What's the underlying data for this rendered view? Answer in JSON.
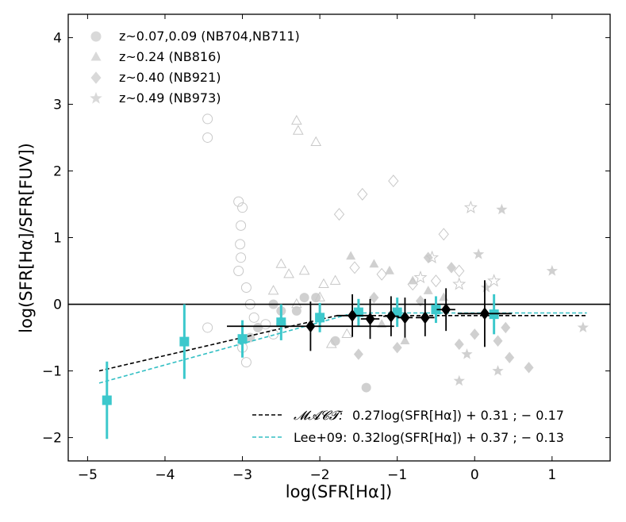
{
  "chart_data": {
    "type": "scatter",
    "title": "",
    "xlabel": "log(SFR[Hα])",
    "ylabel": "log(SFR[Hα]/SFR[FUV])",
    "xlim": [
      -5.25,
      1.75
    ],
    "ylim": [
      -2.35,
      4.35
    ],
    "xticks": [
      -5,
      -4,
      -3,
      -2,
      -1,
      0,
      1
    ],
    "yticks": [
      -2,
      -1,
      0,
      1,
      2,
      3,
      4
    ],
    "xtick_labels": [
      "−5",
      "−4",
      "−3",
      "−2",
      "−1",
      "0",
      "1"
    ],
    "ytick_labels": [
      "−2",
      "−1",
      "0",
      "1",
      "2",
      "3",
      "4"
    ],
    "grid": false,
    "reference_line": {
      "y": 0
    },
    "legend_top": [
      {
        "marker": "circle",
        "label": "z~0.07,0.09 (NB704,NB711)"
      },
      {
        "marker": "triangle",
        "label": "z~0.24 (NB816)"
      },
      {
        "marker": "diamond",
        "label": "z~0.40 (NB921)"
      },
      {
        "marker": "star",
        "label": "z~0.49 (NB973)"
      }
    ],
    "legend_bottom": [
      {
        "style": "dashed",
        "color": "#000000",
        "label_name": "𝓜𝓐𝓒𝓣:",
        "label_expr": "0.27log(SFR[Hα]) + 0.31 ;  − 0.17"
      },
      {
        "style": "dashed",
        "color": "#33bfc4",
        "label_name": "Lee+09:",
        "label_expr": "0.32log(SFR[Hα]) + 0.37 ;  − 0.13"
      }
    ],
    "fits": [
      {
        "name": "MACT",
        "color": "#000000",
        "slope": 0.27,
        "intercept": 0.31,
        "plateau": -0.17,
        "x_range": [
          -4.85,
          1.45
        ]
      },
      {
        "name": "Lee+09",
        "color": "#33bfc4",
        "slope": 0.32,
        "intercept": 0.37,
        "plateau": -0.13,
        "x_range": [
          -4.85,
          1.45
        ]
      }
    ],
    "series": [
      {
        "name": "Lee+09 binned",
        "marker": "square",
        "color": "#3cc8cc",
        "points": [
          {
            "x": -4.75,
            "y": -1.44,
            "yerr_low": 0.58,
            "yerr_high": 0.58
          },
          {
            "x": -3.75,
            "y": -0.56,
            "yerr_low": 0.56,
            "yerr_high": 0.56
          },
          {
            "x": -3.0,
            "y": -0.52,
            "yerr_low": 0.28,
            "yerr_high": 0.28
          },
          {
            "x": -2.5,
            "y": -0.27,
            "yerr_low": 0.27,
            "yerr_high": 0.27
          },
          {
            "x": -2.0,
            "y": -0.2,
            "yerr_low": 0.22,
            "yerr_high": 0.22
          },
          {
            "x": -1.5,
            "y": -0.12,
            "yerr_low": 0.2,
            "yerr_high": 0.2
          },
          {
            "x": -1.0,
            "y": -0.12,
            "yerr_low": 0.22,
            "yerr_high": 0.22
          },
          {
            "x": -0.5,
            "y": -0.08,
            "yerr_low": 0.2,
            "yerr_high": 0.2
          },
          {
            "x": 0.25,
            "y": -0.15,
            "yerr_low": 0.3,
            "yerr_high": 0.3
          }
        ]
      },
      {
        "name": "MACT binned",
        "marker": "diamond",
        "color": "#000000",
        "points": [
          {
            "x": -2.12,
            "y": -0.33,
            "xerr": 1.08,
            "yerr_low": 0.37,
            "yerr_high": 0.37
          },
          {
            "x": -1.58,
            "y": -0.17,
            "xerr": 0.2,
            "yerr_low": 0.32,
            "yerr_high": 0.32
          },
          {
            "x": -1.35,
            "y": -0.22,
            "xerr": 0.12,
            "yerr_low": 0.3,
            "yerr_high": 0.3
          },
          {
            "x": -1.08,
            "y": -0.18,
            "xerr": 0.1,
            "yerr_low": 0.3,
            "yerr_high": 0.3
          },
          {
            "x": -0.9,
            "y": -0.2,
            "xerr": 0.1,
            "yerr_low": 0.3,
            "yerr_high": 0.3
          },
          {
            "x": -0.64,
            "y": -0.2,
            "xerr": 0.12,
            "yerr_low": 0.28,
            "yerr_high": 0.28
          },
          {
            "x": -0.37,
            "y": -0.08,
            "xerr": 0.12,
            "yerr_low": 0.32,
            "yerr_high": 0.32
          },
          {
            "x": 0.13,
            "y": -0.14,
            "xerr": 0.35,
            "yerr_low": 0.5,
            "yerr_high": 0.5
          }
        ]
      },
      {
        "name": "z~0.07,0.09 open circles",
        "marker": "circle-open",
        "color": "#c8c8c8",
        "x": [
          -3.45,
          -3.45,
          -3.05,
          -3.0,
          -3.02,
          -3.03,
          -3.02,
          -3.05,
          -2.95,
          -2.9,
          -2.85,
          -2.7,
          -2.6,
          -2.95,
          -3.45,
          -3.0
        ],
        "y": [
          2.78,
          2.5,
          1.54,
          1.45,
          1.18,
          0.9,
          0.7,
          0.5,
          0.25,
          0.0,
          -0.2,
          -0.3,
          -0.45,
          -0.87,
          -0.35,
          -0.65
        ]
      },
      {
        "name": "z~0.07,0.09 filled circles",
        "marker": "circle",
        "color": "#c8c8c8",
        "x": [
          -2.9,
          -2.6,
          -2.8,
          -2.3,
          -2.5,
          -2.2,
          -1.4,
          -1.8,
          -2.05
        ],
        "y": [
          -0.5,
          0.0,
          -0.35,
          -0.1,
          -0.1,
          0.1,
          -1.25,
          -0.55,
          0.1
        ]
      },
      {
        "name": "z~0.24 open triangles",
        "marker": "triangle-open",
        "color": "#c8c8c8",
        "x": [
          -2.3,
          -2.28,
          -2.05,
          -2.5,
          -2.4,
          -2.2,
          -1.95,
          -2.6,
          -2.3,
          -2.0,
          -1.8,
          -2.5,
          -1.85,
          -1.65
        ],
        "y": [
          2.75,
          2.6,
          2.43,
          0.6,
          0.45,
          0.5,
          0.3,
          0.2,
          0.0,
          0.1,
          0.35,
          -0.25,
          -0.6,
          -0.45
        ]
      },
      {
        "name": "z~0.24 filled triangles",
        "marker": "triangle",
        "color": "#c8c8c8",
        "x": [
          -1.6,
          -1.3,
          -1.1,
          -0.8,
          -0.6,
          -0.4,
          -1.2,
          -0.9
        ],
        "y": [
          0.72,
          0.6,
          0.5,
          0.35,
          0.2,
          0.1,
          -0.3,
          -0.55
        ]
      },
      {
        "name": "z~0.40 open diamonds",
        "marker": "diamond-open",
        "color": "#c8c8c8",
        "x": [
          -1.45,
          -1.05,
          -1.75,
          -0.4,
          -0.2,
          -0.5,
          -1.2,
          -0.8,
          -1.55
        ],
        "y": [
          1.65,
          1.85,
          1.35,
          1.05,
          0.5,
          0.35,
          0.45,
          0.3,
          0.55
        ]
      },
      {
        "name": "z~0.40 filled diamonds",
        "marker": "diamond",
        "color": "#c8c8c8",
        "x": [
          -0.6,
          -0.3,
          0.3,
          0.45,
          0.7,
          0.4,
          -1.5,
          -1.0,
          -0.2,
          0.0,
          -1.3,
          -0.7
        ],
        "y": [
          0.7,
          0.55,
          -0.55,
          -0.8,
          -0.95,
          -0.35,
          -0.75,
          -0.65,
          -0.6,
          -0.45,
          0.1,
          0.05
        ]
      },
      {
        "name": "z~0.49 open stars",
        "marker": "star-open",
        "color": "#c8c8c8",
        "x": [
          -0.05,
          -0.55,
          -0.2,
          0.25,
          -0.7
        ],
        "y": [
          1.45,
          0.7,
          0.3,
          0.35,
          0.4
        ]
      },
      {
        "name": "z~0.49 filled stars",
        "marker": "star",
        "color": "#c8c8c8",
        "x": [
          0.35,
          1.0,
          1.4,
          0.05,
          0.15,
          -0.1,
          0.3,
          -0.2
        ],
        "y": [
          1.42,
          0.5,
          -0.35,
          0.75,
          0.25,
          -0.75,
          -1.0,
          -1.15
        ]
      }
    ]
  }
}
